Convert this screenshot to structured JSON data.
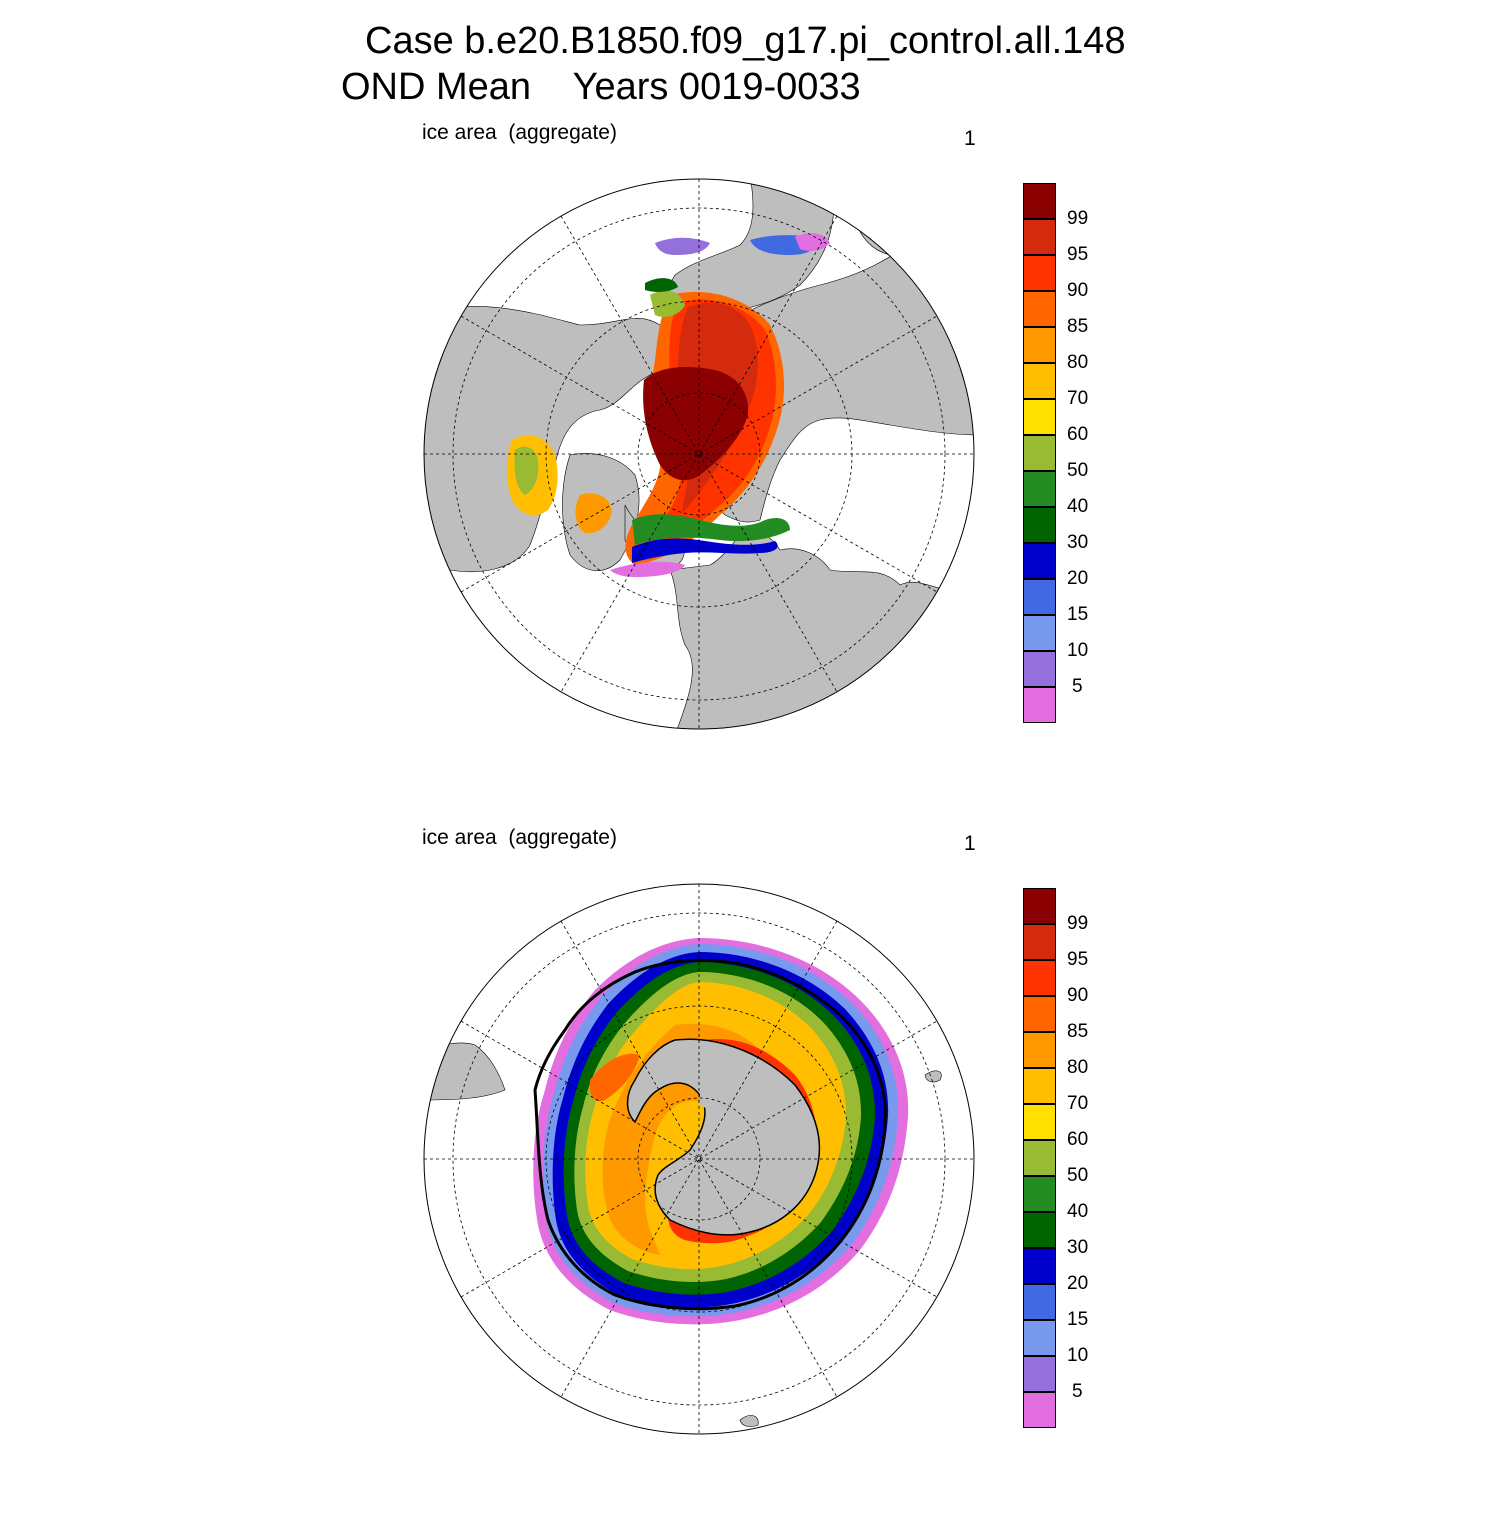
{
  "title": {
    "line1": "Case b.e20.B1850.f09_g17.pi_control.all.148",
    "line2": "OND Mean    Years 0019-0033"
  },
  "panels": [
    {
      "variable_label": "ice area  (aggregate)",
      "units_label": "1",
      "hemisphere": "north"
    },
    {
      "variable_label": "ice area  (aggregate)",
      "units_label": "1",
      "hemisphere": "south"
    }
  ],
  "colorbar": {
    "colors": [
      "#8b0000",
      "#d42a0e",
      "#ff3300",
      "#ff6600",
      "#ff9900",
      "#ffbf00",
      "#ffe000",
      "#99bb33",
      "#228b22",
      "#006400",
      "#0000cd",
      "#4169e1",
      "#7799ee",
      "#9370db",
      "#e26ee0"
    ],
    "labels": [
      "99",
      "95",
      "90",
      "85",
      "80",
      "70",
      "60",
      "50",
      "40",
      "30",
      "20",
      "15",
      "10",
      "5"
    ]
  },
  "chart_data": {
    "type": "heatmap",
    "variable": "ice area (aggregate)",
    "units": "1",
    "contour_levels": [
      5,
      10,
      15,
      20,
      30,
      40,
      50,
      60,
      70,
      80,
      85,
      90,
      95,
      99
    ],
    "maps": [
      {
        "region": "Arctic",
        "projection": "north polar stereographic"
      },
      {
        "region": "Antarctic",
        "projection": "south polar stereographic"
      }
    ],
    "land_color": "#bebebe",
    "ocean_color": "#ffffff"
  }
}
